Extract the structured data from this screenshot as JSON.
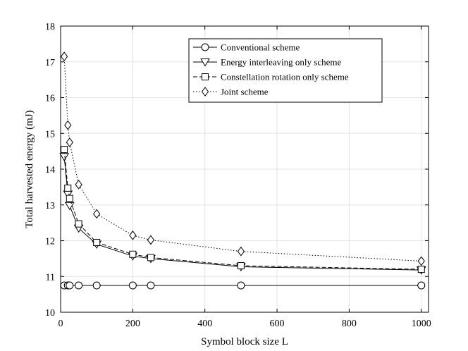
{
  "chart_data": {
    "type": "line",
    "title": "",
    "xlabel": "Symbol block size L",
    "ylabel": "Total harvested energy (mJ)",
    "xlim": [
      0,
      1020
    ],
    "ylim": [
      10,
      18
    ],
    "xticks": [
      0,
      200,
      400,
      600,
      800,
      1000
    ],
    "yticks": [
      10,
      11,
      12,
      13,
      14,
      15,
      16,
      17,
      18
    ],
    "grid": true,
    "legend_position": "top-right",
    "series": [
      {
        "name": "Conventional scheme",
        "marker": "circle",
        "dash": "solid",
        "x": [
          10,
          20,
          25,
          50,
          100,
          200,
          250,
          500,
          1000
        ],
        "y": [
          10.75,
          10.75,
          10.75,
          10.75,
          10.75,
          10.75,
          10.75,
          10.75,
          10.75
        ]
      },
      {
        "name": "Energy interleaving only scheme",
        "marker": "triangle-down",
        "dash": "solid",
        "x": [
          10,
          20,
          25,
          50,
          100,
          200,
          250,
          500,
          1000
        ],
        "y": [
          14.35,
          13.3,
          12.98,
          12.35,
          11.9,
          11.57,
          11.5,
          11.27,
          11.18
        ]
      },
      {
        "name": "Constellation rotation only scheme",
        "marker": "square",
        "dash": "dashed",
        "x": [
          10,
          20,
          25,
          50,
          100,
          200,
          250,
          500,
          1000
        ],
        "y": [
          14.55,
          13.47,
          13.18,
          12.47,
          11.95,
          11.62,
          11.53,
          11.3,
          11.2
        ]
      },
      {
        "name": "Joint scheme",
        "marker": "diamond",
        "dash": "dotted",
        "x": [
          10,
          20,
          25,
          50,
          100,
          200,
          250,
          500,
          1000
        ],
        "y": [
          17.15,
          15.23,
          14.75,
          13.57,
          12.75,
          12.15,
          12.02,
          11.7,
          11.43
        ]
      }
    ]
  }
}
